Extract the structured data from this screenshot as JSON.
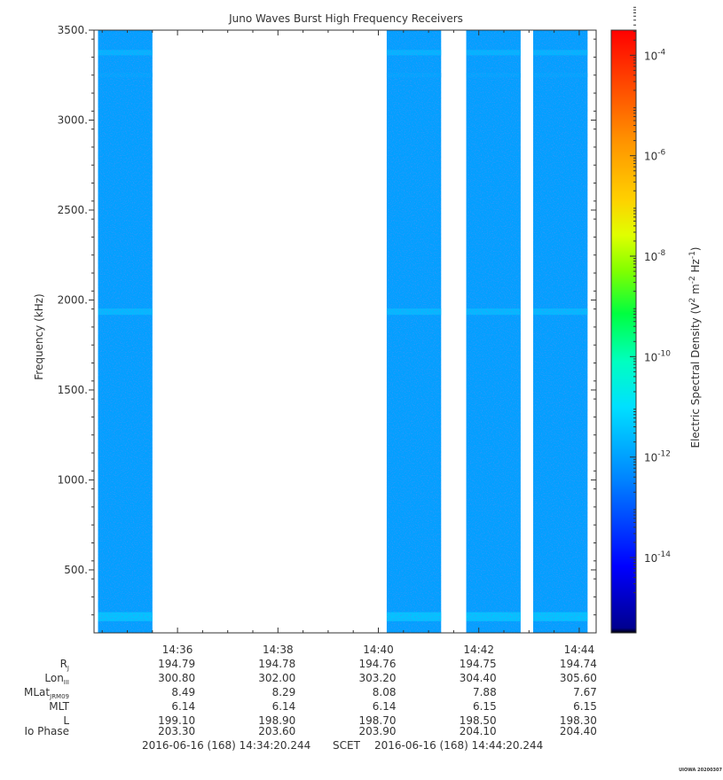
{
  "title": "Juno Waves Burst High Frequency Receivers",
  "colors": {
    "axis": "#333333",
    "background": "#ffffff"
  },
  "chart_data": {
    "type": "heatmap",
    "title": "Juno Waves Burst High Frequency Receivers",
    "ylabel": "Frequency (kHz)",
    "ylim": [
      150,
      3500
    ],
    "yscale": "linear",
    "y_ticks": [
      {
        "value": 500,
        "label": "500."
      },
      {
        "value": 1000,
        "label": "1000."
      },
      {
        "value": 1500,
        "label": "1500."
      },
      {
        "value": 2000,
        "label": "2000."
      },
      {
        "value": 2500,
        "label": "2500."
      },
      {
        "value": 3000,
        "label": "3000."
      },
      {
        "value": 3500,
        "label": "3500."
      }
    ],
    "xlim": [
      "14:34:20.244",
      "14:44:20.244"
    ],
    "x_ticks": [
      {
        "value": "14:36",
        "label": "14:36"
      },
      {
        "value": "14:38",
        "label": "14:38"
      },
      {
        "value": "14:40",
        "label": "14:40"
      },
      {
        "value": "14:42",
        "label": "14:42"
      },
      {
        "value": "14:44",
        "label": "14:44"
      }
    ],
    "data_intervals": [
      [
        "14:34:25",
        "14:35:30"
      ],
      [
        "14:40:10",
        "14:41:15"
      ],
      [
        "14:41:45",
        "14:42:50"
      ],
      [
        "14:43:05",
        "14:44:10"
      ]
    ],
    "background_level_exp": -12,
    "emission_bands_khz": [
      {
        "center": 240,
        "width": 50,
        "level_exp": -11.3
      },
      {
        "center": 1935,
        "width": 35,
        "level_exp": -11.5
      },
      {
        "center": 3375,
        "width": 30,
        "level_exp": -11.6
      },
      {
        "center": 3250,
        "width": 25,
        "level_exp": -11.9
      }
    ],
    "colorbar": {
      "label": "Electric Spectral Density (V² m⁻² Hz⁻¹)",
      "label_parts": {
        "base": "Electric Spectral Density (V",
        "sup1": "2",
        "mid": " m",
        "sup2": "-2",
        "mid2": " Hz",
        "sup3": "-1",
        "end": ")"
      },
      "log_min": -15.5,
      "log_max": -3.5,
      "ticks": [
        {
          "exp": -14,
          "base": "10",
          "sup": "-14"
        },
        {
          "exp": -12,
          "base": "10",
          "sup": "-12"
        },
        {
          "exp": -10,
          "base": "10",
          "sup": "-10"
        },
        {
          "exp": -8,
          "base": "10",
          "sup": "-8"
        },
        {
          "exp": -6,
          "base": "10",
          "sup": "-6"
        },
        {
          "exp": -4,
          "base": "10",
          "sup": "-4"
        }
      ]
    }
  },
  "ephemeris": {
    "rows": [
      {
        "label": "R",
        "sub": "J",
        "values": [
          "194.79",
          "194.78",
          "194.76",
          "194.75",
          "194.74"
        ]
      },
      {
        "label": "Lon",
        "sub": "III",
        "values": [
          "300.80",
          "302.00",
          "303.20",
          "304.40",
          "305.60"
        ]
      },
      {
        "label": "MLat",
        "sub": "JRM09",
        "values": [
          "8.49",
          "8.29",
          "8.08",
          "7.88",
          "7.67"
        ]
      },
      {
        "label": "MLT",
        "sub": "",
        "values": [
          "6.14",
          "6.14",
          "6.14",
          "6.15",
          "6.15"
        ]
      },
      {
        "label": "L",
        "sub": "",
        "values": [
          "199.10",
          "198.90",
          "198.70",
          "198.50",
          "198.30"
        ]
      },
      {
        "label": "Io Phase",
        "sub": "",
        "values": [
          "203.30",
          "203.60",
          "203.90",
          "204.10",
          "204.40"
        ]
      }
    ]
  },
  "footer": {
    "start": "2016-06-16 (168) 14:34:20.244",
    "scet": "SCET",
    "end": "2016-06-16 (168) 14:44:20.244"
  },
  "stamp": "UIOWA 20200307"
}
